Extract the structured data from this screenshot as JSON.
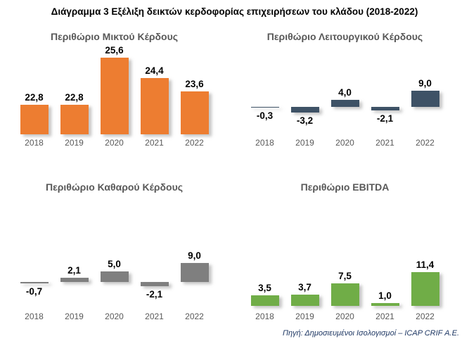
{
  "page": {
    "title": "Διάγραμμα 3 Εξέλιξη δεικτών κερδοφορίας επιχειρήσεων του κλάδου (2018-2022)",
    "source_note": "Πηγή: Δημοσιευμένοι Ισολογισμοί – ICAP CRIF Α.Ε."
  },
  "colors": {
    "gross_margin_bar": "#ED7D31",
    "operating_margin_bar": "#3E5266",
    "net_margin_bar": "#7F7F7F",
    "ebitda_margin_bar": "#70AD47",
    "chart_title_text": "#595959",
    "axis_label_text": "#595959",
    "value_label_text": "#000000",
    "source_note_text": "#1F3864"
  },
  "chart_data": [
    {
      "type": "bar",
      "title": "Περιθώριο Μικτού Κέρδους",
      "categories": [
        "2018",
        "2019",
        "2020",
        "2021",
        "2022"
      ],
      "values": [
        22.8,
        22.8,
        25.6,
        24.4,
        23.6
      ],
      "xlabel": "",
      "ylabel": "",
      "ylim": [
        21,
        26.5
      ],
      "grid": false,
      "legend": false,
      "decimal_separator": ",",
      "bar_color": "#ED7D31",
      "pattern": false
    },
    {
      "type": "bar",
      "title": "Περιθώριο Λειτουργικού Κέρδους",
      "categories": [
        "2018",
        "2019",
        "2020",
        "2021",
        "2022"
      ],
      "values": [
        -0.3,
        -3.2,
        4.0,
        -2.1,
        9.0
      ],
      "xlabel": "",
      "ylabel": "",
      "grid": false,
      "legend": false,
      "decimal_separator": ",",
      "bar_color": "#3E5266",
      "pattern": false
    },
    {
      "type": "bar",
      "title": "Περιθώριο Καθαρού Κέρδους",
      "categories": [
        "2018",
        "2019",
        "2020",
        "2021",
        "2022"
      ],
      "values": [
        -0.7,
        2.1,
        5.0,
        -2.1,
        9.0
      ],
      "xlabel": "",
      "ylabel": "",
      "grid": false,
      "legend": false,
      "decimal_separator": ",",
      "bar_color": "#7F7F7F",
      "pattern": true
    },
    {
      "type": "bar",
      "title": "Περιθώριο EBITDA",
      "categories": [
        "2018",
        "2019",
        "2020",
        "2021",
        "2022"
      ],
      "values": [
        3.5,
        3.7,
        7.5,
        1.0,
        11.4
      ],
      "xlabel": "",
      "ylabel": "",
      "grid": false,
      "legend": false,
      "decimal_separator": ",",
      "bar_color": "#70AD47",
      "pattern": false
    }
  ]
}
